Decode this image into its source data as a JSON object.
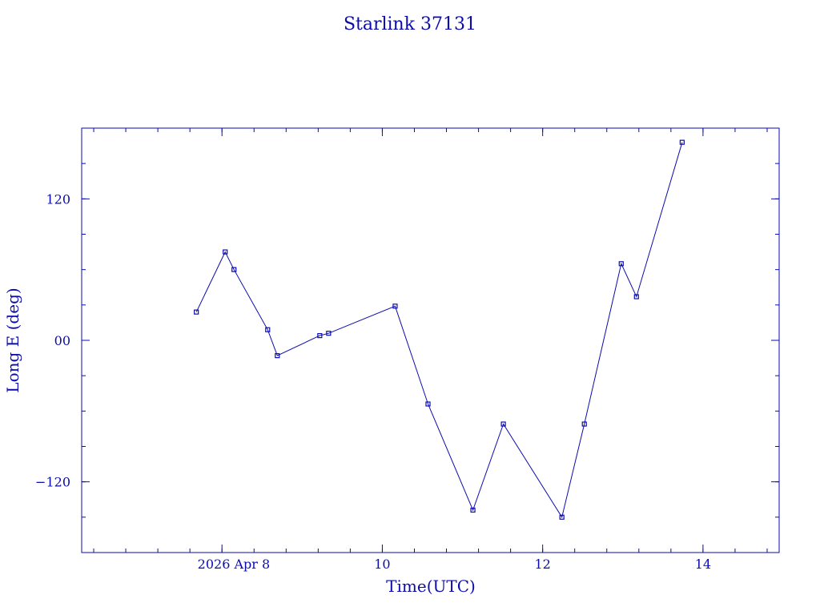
{
  "chart_data": {
    "type": "line",
    "title": "Starlink 37131",
    "xlabel": "Time(UTC)",
    "ylabel": "Long E (deg)",
    "date_label": "2026 Apr  8",
    "line_color": "#0b0bb0",
    "xlim": [
      6.25,
      14.95
    ],
    "ylim": [
      -180,
      180
    ],
    "x_ticks": [
      {
        "value": 8,
        "label": "2026 Apr  8"
      },
      {
        "value": 10,
        "label": "10"
      },
      {
        "value": 12,
        "label": "12"
      },
      {
        "value": 14,
        "label": "14"
      }
    ],
    "y_ticks": [
      {
        "value": -120,
        "label": "−120"
      },
      {
        "value": 0,
        "label": "00"
      },
      {
        "value": 120,
        "label": "120"
      }
    ],
    "x_minor_step": 0.4,
    "y_minor_step": 30,
    "x": [
      7.68,
      8.04,
      8.15,
      8.57,
      8.69,
      9.22,
      9.33,
      10.16,
      10.57,
      11.13,
      11.51,
      12.24,
      12.52,
      12.98,
      13.17,
      13.74
    ],
    "y": [
      24,
      75,
      60,
      9,
      -13,
      4,
      6,
      29,
      -54,
      -144,
      -71,
      -150,
      -71,
      65,
      37,
      168
    ],
    "grid": false,
    "legend": "none"
  }
}
